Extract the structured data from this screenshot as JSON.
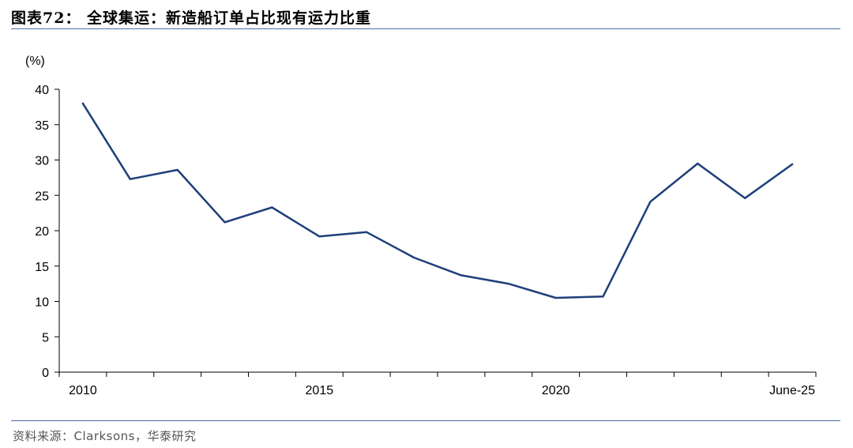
{
  "header": {
    "title": "图表72：  全球集运：新造船订单占比现有运力比重"
  },
  "footer": {
    "source": "资料来源：Clarksons，华泰研究"
  },
  "chart_data": {
    "type": "line",
    "title": "全球集运：新造船订单占比现有运力比重",
    "ylabel": "(%)",
    "xlabel": "",
    "ylim": [
      0,
      40
    ],
    "yticks": [
      0,
      5,
      10,
      15,
      20,
      25,
      30,
      35,
      40
    ],
    "x": [
      "2010",
      "2011",
      "2012",
      "2013",
      "2014",
      "2015",
      "2016",
      "2017",
      "2018",
      "2019",
      "2020",
      "2021",
      "2022",
      "2023",
      "2024",
      "June-25"
    ],
    "xtick_labels": [
      "2010",
      "2015",
      "2020",
      "June-25"
    ],
    "series": [
      {
        "name": "",
        "color": "#1f3f7a",
        "values": [
          38.0,
          27.3,
          28.6,
          21.2,
          23.3,
          19.2,
          19.8,
          16.2,
          13.7,
          12.5,
          10.5,
          10.7,
          24.1,
          29.5,
          24.6,
          29.4
        ]
      }
    ],
    "grid": false,
    "legend": "none"
  }
}
